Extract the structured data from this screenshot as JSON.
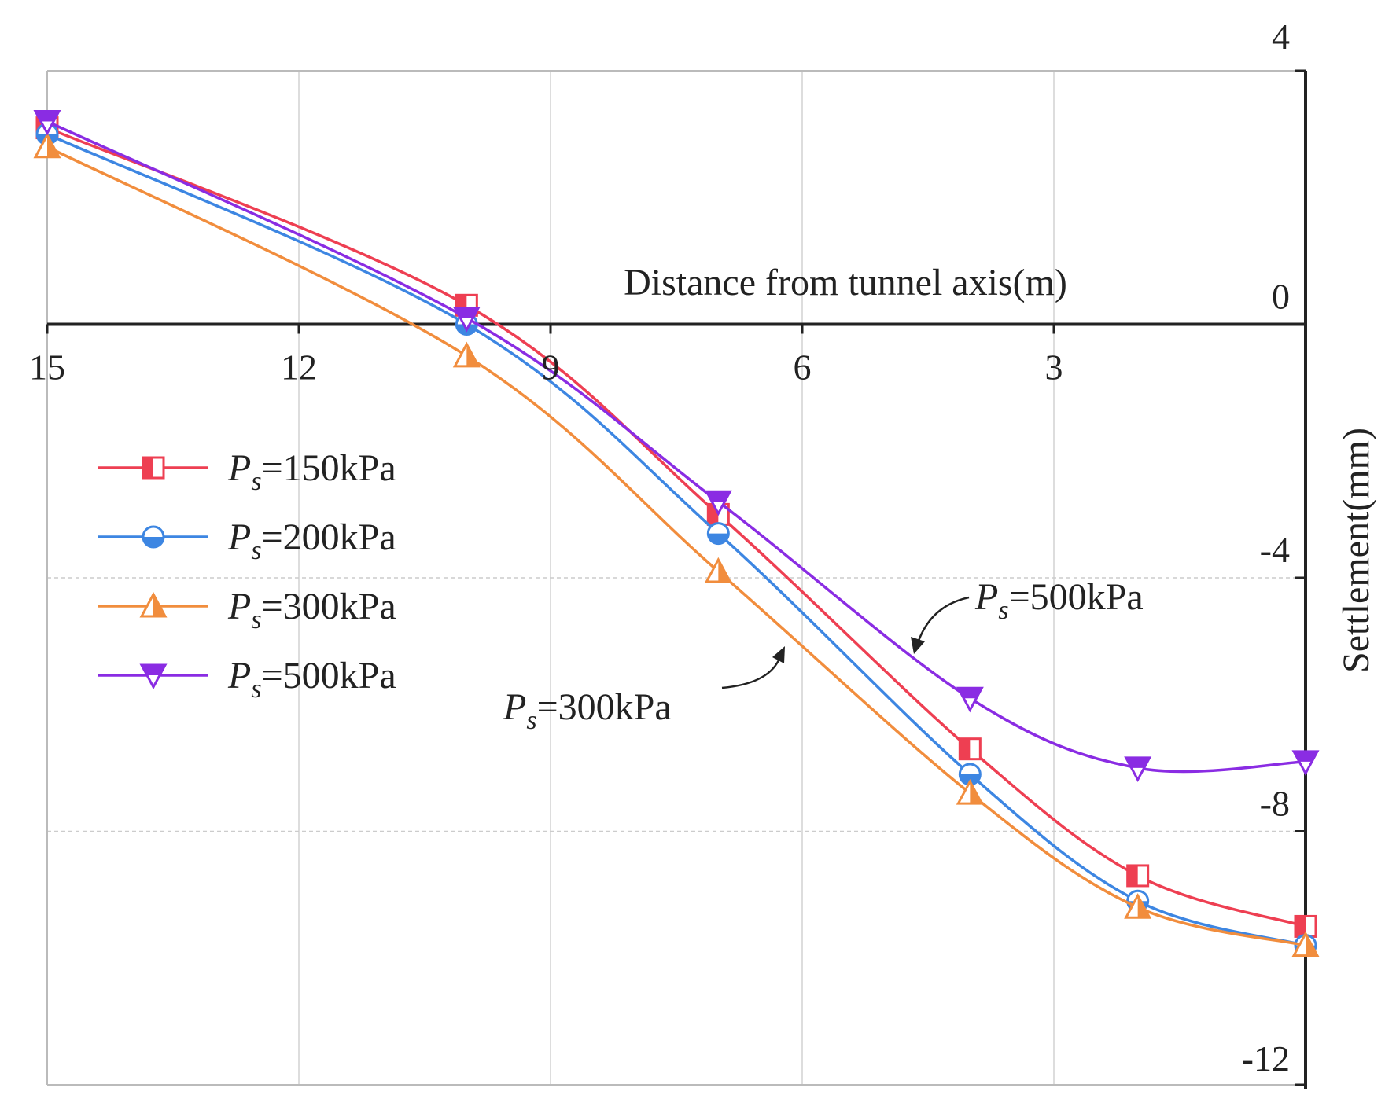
{
  "chart_data": {
    "type": "line",
    "title": "",
    "xlabel": "Distance from tunnel axis(m)",
    "ylabel": "Settlement(mm)",
    "x_tick_labels": [
      "15",
      "12",
      "9",
      "6",
      "3"
    ],
    "y_tick_labels": [
      "4",
      "0",
      "-4",
      "-8",
      "-12"
    ],
    "x_ticks": [
      15,
      12,
      9,
      6,
      3
    ],
    "y_ticks": [
      4,
      0,
      -4,
      -8,
      -12
    ],
    "xlim": [
      15,
      0
    ],
    "ylim": [
      -12,
      4
    ],
    "x_reversed": true,
    "grid": true,
    "legend_position": "left",
    "x": [
      15,
      10,
      7,
      4,
      2,
      0
    ],
    "series": [
      {
        "name": "150kPa",
        "label_prefix": "P",
        "label_sub": "s",
        "label_eq": "=150kPa",
        "color": "#ee3f52",
        "marker": "square-half",
        "values": [
          3.1,
          0.3,
          -3.0,
          -6.7,
          -8.7,
          -9.5
        ]
      },
      {
        "name": "200kPa",
        "label_prefix": "P",
        "label_sub": "s",
        "label_eq": "=200kPa",
        "color": "#3d86e2",
        "marker": "circle-half",
        "values": [
          3.0,
          0.0,
          -3.3,
          -7.1,
          -9.1,
          -9.8
        ]
      },
      {
        "name": "300kPa",
        "label_prefix": "P",
        "label_sub": "s",
        "label_eq": "=300kPa",
        "color": "#f18d3d",
        "marker": "triangle-half",
        "values": [
          2.8,
          -0.5,
          -3.9,
          -7.4,
          -9.2,
          -9.8
        ]
      },
      {
        "name": "500kPa",
        "label_prefix": "P",
        "label_sub": "s",
        "label_eq": "=500kPa",
        "color": "#8a2ce3",
        "marker": "triangle-down-half",
        "values": [
          3.2,
          0.1,
          -2.8,
          -5.9,
          -7.0,
          -6.9
        ]
      }
    ],
    "annotations": [
      {
        "prefix": "P",
        "sub": "s",
        "text": "=500kPa",
        "target_series": "500kPa"
      },
      {
        "prefix": "P",
        "sub": "s",
        "text": "=300kPa",
        "target_series": "300kPa"
      }
    ]
  }
}
